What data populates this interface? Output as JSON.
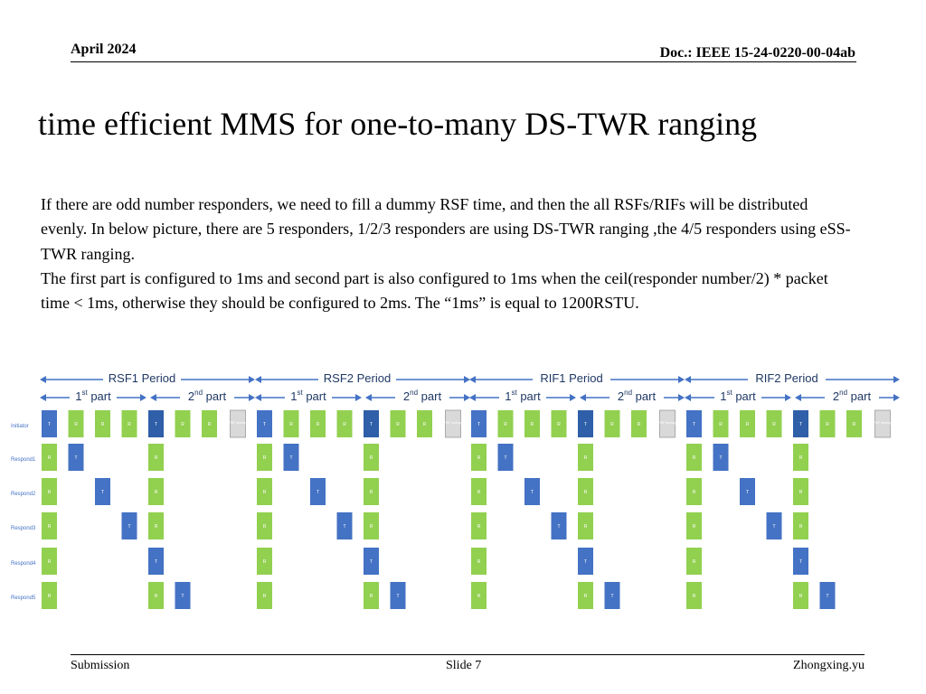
{
  "header": {
    "date": "April 2024",
    "doc": "Doc.: IEEE 15-24-0220-00-04ab"
  },
  "title": "time efficient  MMS for one-to-many DS-TWR ranging",
  "body": [
    "If there are odd number responders, we need to fill a dummy RSF time, and then the all RSFs/RIFs will be distributed evenly. In below picture, there are 5 responders, 1/2/3 responders are using DS-TWR ranging ,the 4/5 responders using eSS-TWR ranging.",
    "The first part is configured to 1ms and second part is also configured to 1ms when the ceil(responder number/2) * packet time < 1ms, otherwise they should be configured to 2ms. The “1ms” is equal to 1200RSTU."
  ],
  "diagram": {
    "periods": [
      "RSF1 Period",
      "RSF2 Period",
      "RIF1 Period",
      "RIF2 Period"
    ],
    "part1": "1",
    "part1_sup": "st",
    "part2": "2",
    "part2_sup": "nd",
    "part_word": "part",
    "rows": [
      "Initiator",
      "Respond1",
      "Respond2",
      "Respond3",
      "Respond4",
      "Respond5"
    ],
    "initiator_slots": [
      "T",
      "R",
      "R",
      "R",
      "T",
      "R",
      "R"
    ],
    "dummy_label": "RSF dummy",
    "blue_label": "T",
    "green_label": "R",
    "colors": {
      "blue": "#4472C4",
      "blue_dark": "#2E5FA8",
      "green": "#92D050",
      "gray": "#D9D9D9",
      "arrow": "#4472C4"
    }
  },
  "footer": {
    "left": "Submission",
    "center": "Slide 7",
    "right": "Zhongxing.yu"
  }
}
